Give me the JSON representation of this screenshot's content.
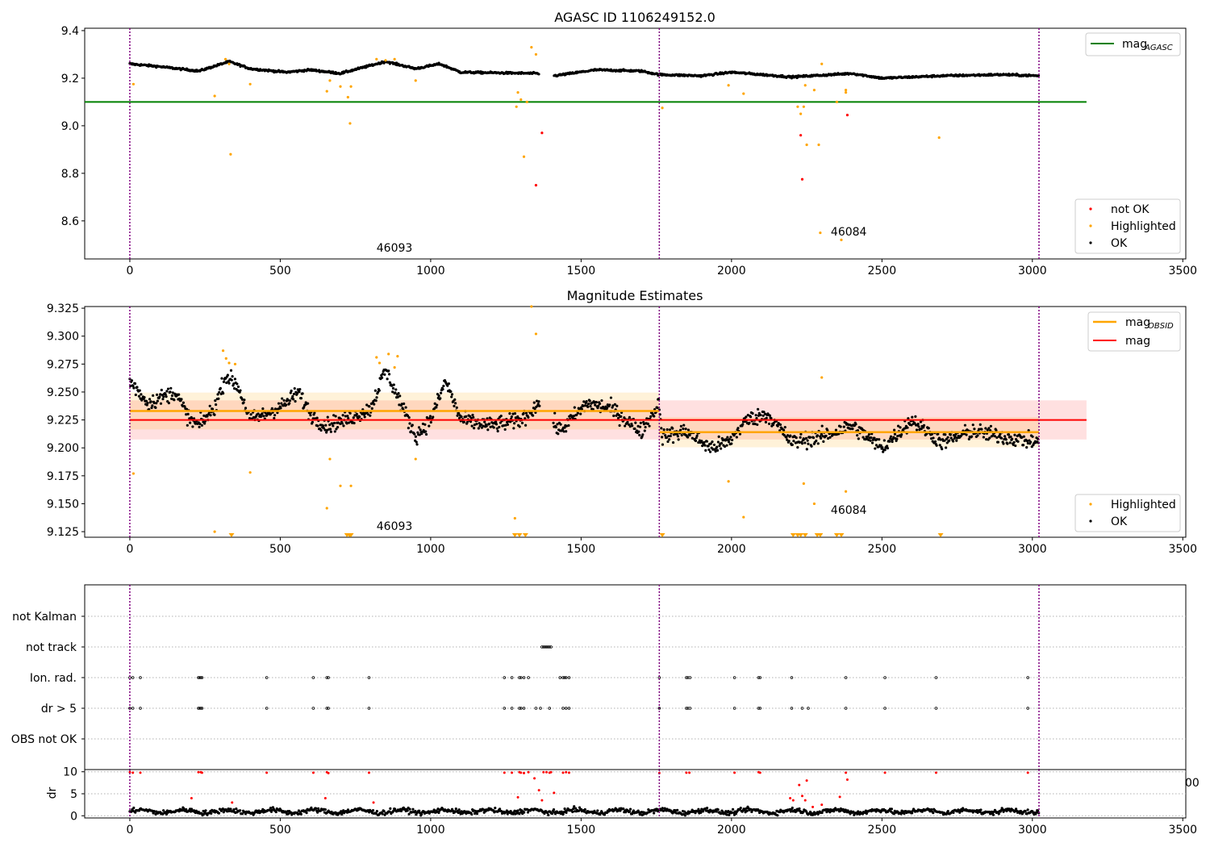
{
  "figure": {
    "title": "AGASC ID 1106249152.0",
    "x_ticks": [
      0,
      500,
      1000,
      1500,
      2000,
      2500,
      3000,
      3500
    ],
    "obs_boundaries": [
      0,
      1760,
      3022
    ],
    "obsid_labels": [
      {
        "text": "46093",
        "x": 820
      },
      {
        "text": "46084",
        "x": 2330
      }
    ],
    "colors": {
      "ok": "#000000",
      "highlighted": "#ffa500",
      "not_ok": "#ff0000",
      "agasc": "#008000",
      "mag": "#ff0000",
      "mag_obsid": "#ffa500",
      "boundary": "#800080"
    }
  },
  "chart_data": [
    {
      "id": "agasc-panel",
      "type": "scatter",
      "title": "",
      "xlim": [
        -150,
        3510
      ],
      "ylim": [
        8.44,
        9.41
      ],
      "y_ticks": [
        8.6,
        8.8,
        9.0,
        9.2,
        9.4
      ],
      "y_tick_labels": [
        "8.6",
        "8.8",
        "9.0",
        "9.2",
        "9.4"
      ],
      "lines": [
        {
          "name": "mag",
          "subscript": "AGASC",
          "y": 9.1,
          "x": [
            -150,
            3180
          ],
          "color": "#008000"
        }
      ],
      "ok_series": {
        "name": "OK",
        "x_range": [
          0,
          3022
        ],
        "gap": [
          1360,
          1410
        ],
        "segments": [
          [
            0,
            9.26
          ],
          [
            90,
            9.25
          ],
          [
            230,
            9.23
          ],
          [
            330,
            9.27
          ],
          [
            400,
            9.24
          ],
          [
            520,
            9.225
          ],
          [
            600,
            9.235
          ],
          [
            700,
            9.22
          ],
          [
            850,
            9.27
          ],
          [
            950,
            9.24
          ],
          [
            1030,
            9.26
          ],
          [
            1100,
            9.225
          ],
          [
            1350,
            9.22
          ],
          [
            1410,
            9.21
          ],
          [
            1550,
            9.235
          ],
          [
            1700,
            9.23
          ],
          [
            1760,
            9.215
          ],
          [
            1900,
            9.21
          ],
          [
            2000,
            9.225
          ],
          [
            2200,
            9.205
          ],
          [
            2400,
            9.22
          ],
          [
            2500,
            9.2
          ],
          [
            2700,
            9.21
          ],
          [
            2900,
            9.215
          ],
          [
            3022,
            9.21
          ]
        ]
      },
      "highlighted": [
        [
          12,
          9.175
        ],
        [
          282,
          9.125
        ],
        [
          335,
          8.88
        ],
        [
          318,
          9.28
        ],
        [
          330,
          9.26
        ],
        [
          400,
          9.175
        ],
        [
          655,
          9.145
        ],
        [
          665,
          9.19
        ],
        [
          700,
          9.165
        ],
        [
          725,
          9.12
        ],
        [
          735,
          9.165
        ],
        [
          732,
          9.01
        ],
        [
          820,
          9.28
        ],
        [
          850,
          9.275
        ],
        [
          880,
          9.28
        ],
        [
          950,
          9.19
        ],
        [
          1285,
          9.08
        ],
        [
          1290,
          9.14
        ],
        [
          1300,
          9.11
        ],
        [
          1310,
          8.87
        ],
        [
          1320,
          9.1
        ],
        [
          1335,
          9.33
        ],
        [
          1350,
          9.3
        ],
        [
          1770,
          9.075
        ],
        [
          1990,
          9.17
        ],
        [
          2040,
          9.135
        ],
        [
          2220,
          9.08
        ],
        [
          2230,
          9.05
        ],
        [
          2240,
          9.08
        ],
        [
          2245,
          9.17
        ],
        [
          2250,
          8.92
        ],
        [
          2275,
          9.15
        ],
        [
          2290,
          8.92
        ],
        [
          2300,
          9.26
        ],
        [
          2295,
          8.55
        ],
        [
          2350,
          9.1
        ],
        [
          2365,
          8.52
        ],
        [
          2380,
          9.15
        ],
        [
          2380,
          9.14
        ],
        [
          2690,
          8.95
        ]
      ],
      "not_ok": [
        [
          1350,
          8.75
        ],
        [
          1370,
          8.97
        ],
        [
          2230,
          8.96
        ],
        [
          2235,
          8.775
        ],
        [
          2385,
          9.045
        ]
      ],
      "legend_lines": [
        "mag"
      ],
      "legend_points": [
        "not OK",
        "Highlighted",
        "OK"
      ]
    },
    {
      "id": "estimates-panel",
      "type": "scatter",
      "title": "Magnitude Estimates",
      "xlim": [
        -150,
        3510
      ],
      "ylim": [
        9.12,
        9.3265
      ],
      "y_ticks": [
        9.125,
        9.15,
        9.175,
        9.2,
        9.225,
        9.25,
        9.275,
        9.3,
        9.325
      ],
      "y_tick_labels": [
        "9.125",
        "9.150",
        "9.175",
        "9.200",
        "9.225",
        "9.250",
        "9.275",
        "9.300",
        "9.325"
      ],
      "mag": {
        "name": "mag",
        "y": 9.225,
        "band": [
          9.2075,
          9.2425
        ],
        "x": [
          0,
          3180
        ]
      },
      "mag_obsid": {
        "name": "mag",
        "subscript": "OBSID",
        "segments": [
          {
            "x": [
              0,
              1760
            ],
            "y": 9.233,
            "band": [
              9.2165,
              9.2495
            ]
          },
          {
            "x": [
              1760,
              3022
            ],
            "y": 9.214,
            "band": [
              9.2005,
              9.2275
            ]
          }
        ]
      },
      "ok_series": {
        "name": "OK",
        "segments": [
          [
            0,
            9.26
          ],
          [
            60,
            9.24
          ],
          [
            150,
            9.25
          ],
          [
            200,
            9.225
          ],
          [
            230,
            9.22
          ],
          [
            280,
            9.235
          ],
          [
            320,
            9.265
          ],
          [
            360,
            9.255
          ],
          [
            400,
            9.225
          ],
          [
            450,
            9.23
          ],
          [
            520,
            9.24
          ],
          [
            560,
            9.25
          ],
          [
            600,
            9.23
          ],
          [
            650,
            9.22
          ],
          [
            720,
            9.225
          ],
          [
            800,
            9.235
          ],
          [
            850,
            9.27
          ],
          [
            900,
            9.24
          ],
          [
            950,
            9.21
          ],
          [
            1000,
            9.225
          ],
          [
            1050,
            9.26
          ],
          [
            1100,
            9.225
          ],
          [
            1200,
            9.22
          ],
          [
            1300,
            9.225
          ],
          [
            1360,
            9.24
          ],
          [
            1430,
            9.215
          ],
          [
            1520,
            9.24
          ],
          [
            1600,
            9.235
          ],
          [
            1700,
            9.215
          ],
          [
            1760,
            9.24
          ],
          [
            1770,
            9.21
          ],
          [
            1850,
            9.215
          ],
          [
            1930,
            9.2
          ],
          [
            1990,
            9.205
          ],
          [
            2050,
            9.225
          ],
          [
            2120,
            9.23
          ],
          [
            2200,
            9.205
          ],
          [
            2300,
            9.21
          ],
          [
            2400,
            9.22
          ],
          [
            2500,
            9.2
          ],
          [
            2600,
            9.225
          ],
          [
            2700,
            9.205
          ],
          [
            2800,
            9.215
          ],
          [
            2900,
            9.21
          ],
          [
            3022,
            9.205
          ]
        ]
      },
      "highlighted": [
        [
          12,
          9.177
        ],
        [
          282,
          9.125
        ],
        [
          310,
          9.287
        ],
        [
          320,
          9.28
        ],
        [
          330,
          9.276
        ],
        [
          350,
          9.275
        ],
        [
          400,
          9.178
        ],
        [
          655,
          9.146
        ],
        [
          665,
          9.19
        ],
        [
          700,
          9.166
        ],
        [
          735,
          9.166
        ],
        [
          820,
          9.281
        ],
        [
          830,
          9.276
        ],
        [
          860,
          9.284
        ],
        [
          880,
          9.272
        ],
        [
          890,
          9.282
        ],
        [
          950,
          9.19
        ],
        [
          1280,
          9.137
        ],
        [
          1335,
          9.3265
        ],
        [
          1350,
          9.302
        ],
        [
          1990,
          9.17
        ],
        [
          2040,
          9.138
        ],
        [
          2240,
          9.168
        ],
        [
          2275,
          9.15
        ],
        [
          2300,
          9.263
        ],
        [
          2380,
          9.161
        ]
      ],
      "clipped_low": [
        338,
        722,
        730,
        735,
        1280,
        1295,
        1315,
        1770,
        2205,
        2220,
        2230,
        2245,
        2285,
        2295,
        2350,
        2365,
        2695
      ],
      "legend_lines": [
        "mag",
        "mag"
      ],
      "legend_points": [
        "Highlighted",
        "OK"
      ]
    },
    {
      "id": "flags-panel",
      "type": "scatter",
      "title": "",
      "categories": [
        "not Kalman",
        "not track",
        "Ion. rad.",
        "dr > 5",
        "OBS not OK"
      ],
      "flag_points": {
        "not track": [
          1370,
          1375,
          1380,
          1385,
          1390,
          1395,
          1400
        ],
        "Ion. rad.": [
          0,
          10,
          35,
          228,
          232,
          236,
          240,
          455,
          610,
          655,
          660,
          795,
          1245,
          1270,
          1295,
          1300,
          1310,
          1325,
          1430,
          1440,
          1445,
          1450,
          1460,
          1760,
          1850,
          1855,
          1862,
          2010,
          2090,
          2095,
          2200,
          2380,
          2510,
          2680,
          2985
        ],
        "dr > 5": [
          0,
          10,
          35,
          228,
          232,
          236,
          240,
          455,
          610,
          655,
          660,
          795,
          1245,
          1270,
          1295,
          1300,
          1310,
          1350,
          1365,
          1395,
          1440,
          1450,
          1460,
          1760,
          1850,
          1855,
          1862,
          2010,
          2090,
          2095,
          2200,
          2235,
          2255,
          2380,
          2510,
          2680,
          2985
        ]
      }
    },
    {
      "id": "dr-panel",
      "type": "scatter",
      "ylabel": "dr",
      "ylim": [
        -0.5,
        10.5
      ],
      "y_ticks": [
        0,
        5,
        10
      ],
      "y_tick_labels": [
        "0",
        "5",
        "10"
      ],
      "x_tick_labels": [
        "0",
        "500",
        "1000",
        "1500",
        "2000",
        "2500",
        "3000",
        "3500"
      ],
      "ok_series": {
        "name": "OK",
        "y_mean": 1.0,
        "y_amp": 0.9
      },
      "red_points": [
        [
          0,
          9.9
        ],
        [
          10,
          9.8
        ],
        [
          35,
          9.8
        ],
        [
          205,
          4.0
        ],
        [
          228,
          9.9
        ],
        [
          236,
          9.9
        ],
        [
          240,
          9.8
        ],
        [
          340,
          3.0
        ],
        [
          455,
          9.8
        ],
        [
          610,
          9.8
        ],
        [
          655,
          9.9
        ],
        [
          660,
          9.7
        ],
        [
          650,
          4.0
        ],
        [
          795,
          9.8
        ],
        [
          810,
          3.0
        ],
        [
          1245,
          9.8
        ],
        [
          1270,
          9.8
        ],
        [
          1290,
          4.2
        ],
        [
          1295,
          9.9
        ],
        [
          1300,
          9.8
        ],
        [
          1310,
          9.7
        ],
        [
          1325,
          9.9
        ],
        [
          1345,
          8.5
        ],
        [
          1360,
          5.8
        ],
        [
          1370,
          3.5
        ],
        [
          1375,
          9.9
        ],
        [
          1385,
          9.9
        ],
        [
          1395,
          9.8
        ],
        [
          1400,
          9.9
        ],
        [
          1410,
          5.2
        ],
        [
          1440,
          9.8
        ],
        [
          1450,
          9.9
        ],
        [
          1460,
          9.8
        ],
        [
          1760,
          9.7
        ],
        [
          1850,
          9.8
        ],
        [
          1860,
          9.8
        ],
        [
          2010,
          9.8
        ],
        [
          2090,
          9.9
        ],
        [
          2095,
          9.8
        ],
        [
          2195,
          4.0
        ],
        [
          2205,
          3.5
        ],
        [
          2225,
          7.0
        ],
        [
          2235,
          4.5
        ],
        [
          2245,
          3.5
        ],
        [
          2250,
          8.0
        ],
        [
          2270,
          2.0
        ],
        [
          2300,
          2.5
        ],
        [
          2360,
          4.3
        ],
        [
          2380,
          9.8
        ],
        [
          2385,
          8.2
        ],
        [
          2510,
          9.8
        ],
        [
          2680,
          9.8
        ],
        [
          2985,
          9.8
        ]
      ],
      "offscreen_text": "00"
    }
  ]
}
